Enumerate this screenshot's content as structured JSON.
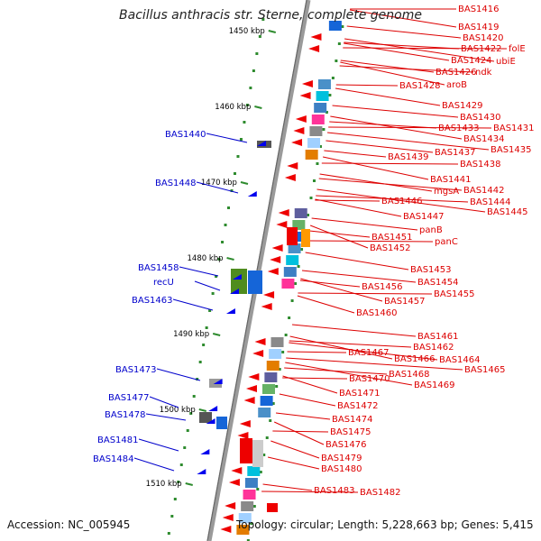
{
  "title": "Bacillus anthracis str. Sterne, complete genome",
  "footer": {
    "accession": "Accession: NC_005945",
    "stats": "Topology: circular; Length: 5,228,663 bp; Genes: 5,415"
  },
  "scale_marks": [
    "1450 kbp",
    "1460 kbp",
    "1470 kbp",
    "1480 kbp",
    "1490 kbp",
    "1500 kbp",
    "1510 kbp"
  ],
  "colors": {
    "forward_labels": "#0000cc",
    "reverse_labels": "#dd0000",
    "backbone": "#999999",
    "ticks": "#2e8b2e"
  },
  "forward_genes": [
    "BAS1440",
    "BAS1448",
    "BAS1458",
    "recU",
    "BAS1463",
    "BAS1473",
    "BAS1477",
    "BAS1478",
    "BAS1481",
    "BAS1484"
  ],
  "reverse_genes": [
    "BAS1416",
    "BAS1419",
    "BAS1420",
    "BAS1422",
    "folE",
    "ubiE",
    "BAS1424",
    "BAS1426",
    "ndk",
    "BAS1428",
    "aroB",
    "BAS1429",
    "BAS1430",
    "BAS1433",
    "BAS1431",
    "BAS1434",
    "BAS1435",
    "BAS1437",
    "BAS1439",
    "BAS1438",
    "BAS1441",
    "mgsA",
    "BAS1442",
    "BAS1444",
    "BAS1446",
    "BAS1445",
    "BAS1447",
    "panB",
    "BAS1451",
    "panC",
    "BAS1452",
    "BAS1453",
    "BAS1454",
    "BAS1456",
    "BAS1455",
    "BAS1457",
    "BAS1460",
    "BAS1461",
    "BAS1462",
    "BAS1467",
    "BAS1466",
    "BAS1464",
    "BAS1465",
    "BAS1468",
    "BAS1470",
    "BAS1469",
    "BAS1471",
    "BAS1472",
    "BAS1474",
    "BAS1475",
    "BAS1476",
    "BAS1479",
    "BAS1480",
    "BAS1483",
    "BAS1482"
  ]
}
